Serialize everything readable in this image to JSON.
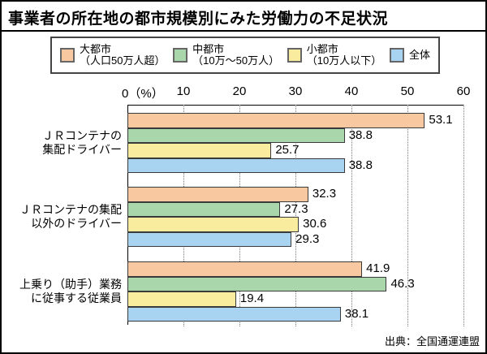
{
  "title": "事業者の所在地の都市規模別にみた労働力の不足状況",
  "source": "出典：全国通運連盟",
  "legend": {
    "items": [
      {
        "name": "大都市",
        "sub": "（人口50万人超）",
        "color": "#F8C8A0"
      },
      {
        "name": "中都市",
        "sub": "（10万～50万人）",
        "color": "#AAD6AB"
      },
      {
        "name": "小都市",
        "sub": "（10万人以下）",
        "color": "#F9EC9E"
      },
      {
        "name": "全体",
        "sub": "",
        "color": "#A9D4F1"
      }
    ]
  },
  "chart_data": {
    "type": "bar",
    "orientation": "horizontal",
    "unit": "%",
    "title": "事業者の所在地の都市規模別にみた労働力の不足状況",
    "x_axis": {
      "zero_label": "0（%）",
      "ticks": [
        10,
        20,
        30,
        40,
        50,
        60
      ],
      "min": 0,
      "max": 60
    },
    "grid": "dotted-vertical",
    "legend_position": "top",
    "categories": [
      {
        "label_lines": [
          "ＪＲコンテナの",
          "集配ドライバー"
        ]
      },
      {
        "label_lines": [
          "ＪＲコンテナの集配",
          "以外のドライバー"
        ]
      },
      {
        "label_lines": [
          "上乗り（助手）業務",
          "に従事する従業員"
        ]
      }
    ],
    "series": [
      {
        "name": "大都市（人口50万人超）",
        "color": "#F8C8A0",
        "values": [
          53.1,
          32.3,
          41.9
        ]
      },
      {
        "name": "中都市（10万～50万人）",
        "color": "#AAD6AB",
        "values": [
          38.8,
          27.3,
          46.3
        ]
      },
      {
        "name": "小都市（10万人以下）",
        "color": "#F9EC9E",
        "values": [
          25.7,
          30.6,
          19.4
        ]
      },
      {
        "name": "全体",
        "color": "#A9D4F1",
        "values": [
          38.8,
          29.3,
          38.1
        ]
      }
    ]
  }
}
